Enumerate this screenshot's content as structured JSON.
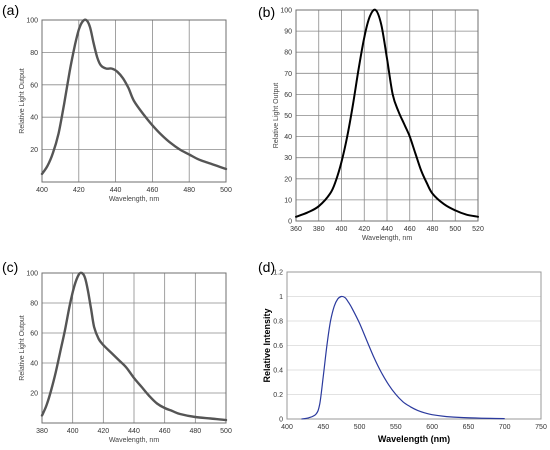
{
  "figure": {
    "panels": [
      "(a)",
      "(b)",
      "(c)",
      "(d)"
    ]
  },
  "colors": {
    "grey_curve": "#555555",
    "black_curve": "#000000",
    "blue_curve": "#2b3a9e",
    "grid": "#8a8a8a"
  },
  "chart_data": [
    {
      "tag": "(a)",
      "type": "line",
      "title": "",
      "xlabel": "Wavelength, nm",
      "ylabel": "Relative Light Output",
      "xlim": [
        400,
        500
      ],
      "ylim": [
        0,
        100
      ],
      "xticks": [
        400,
        420,
        440,
        460,
        480,
        500
      ],
      "yticks": [
        20,
        40,
        60,
        80,
        100
      ],
      "grid": true,
      "x": [
        400,
        403,
        406,
        409,
        412,
        415,
        418,
        420,
        422,
        424,
        426,
        428,
        430,
        432,
        435,
        438,
        441,
        444,
        447,
        450,
        455,
        460,
        465,
        470,
        475,
        480,
        485,
        490,
        495,
        500
      ],
      "y": [
        5,
        10,
        18,
        30,
        48,
        68,
        85,
        94,
        99,
        100,
        96,
        86,
        77,
        72,
        70,
        70,
        68,
        64,
        58,
        50,
        42,
        35,
        29,
        24,
        20,
        17,
        14,
        12,
        10,
        8
      ]
    },
    {
      "tag": "(b)",
      "type": "line",
      "title": "",
      "xlabel": "Wavelength, nm",
      "ylabel": "Relative Light Output",
      "xlim": [
        360,
        520
      ],
      "ylim": [
        0,
        100
      ],
      "xticks": [
        360,
        380,
        400,
        420,
        440,
        460,
        480,
        500,
        520
      ],
      "yticks": [
        0,
        10,
        20,
        30,
        40,
        50,
        60,
        70,
        80,
        90,
        100
      ],
      "grid": true,
      "x": [
        360,
        370,
        380,
        390,
        395,
        400,
        405,
        410,
        415,
        420,
        425,
        430,
        435,
        440,
        445,
        450,
        455,
        460,
        465,
        470,
        475,
        480,
        490,
        500,
        510,
        520
      ],
      "y": [
        2,
        4,
        7,
        13,
        19,
        28,
        40,
        55,
        72,
        87,
        97,
        100,
        93,
        77,
        60,
        52,
        46,
        40,
        32,
        24,
        18,
        13,
        8,
        5,
        3,
        2
      ]
    },
    {
      "tag": "(c)",
      "type": "line",
      "title": "",
      "xlabel": "Wavelength, nm",
      "ylabel": "Relative Light Output",
      "xlim": [
        380,
        500
      ],
      "ylim": [
        0,
        100
      ],
      "xticks": [
        380,
        400,
        420,
        440,
        460,
        480,
        500
      ],
      "yticks": [
        20,
        40,
        60,
        80,
        100
      ],
      "grid": true,
      "x": [
        380,
        383,
        386,
        389,
        392,
        395,
        398,
        401,
        404,
        406,
        408,
        410,
        412,
        414,
        417,
        420,
        425,
        430,
        435,
        440,
        445,
        450,
        455,
        460,
        465,
        470,
        480,
        490,
        500
      ],
      "y": [
        5,
        12,
        22,
        34,
        48,
        62,
        78,
        91,
        99,
        100,
        97,
        88,
        76,
        64,
        56,
        52,
        47,
        42,
        37,
        30,
        24,
        18,
        13,
        10,
        8,
        6,
        4,
        3,
        2
      ]
    },
    {
      "tag": "(d)",
      "type": "line",
      "title": "",
      "xlabel": "Wavelength (nm)",
      "ylabel": "Relative Intensity",
      "xlim": [
        400,
        750
      ],
      "ylim": [
        0,
        1.2
      ],
      "xticks": [
        400,
        450,
        500,
        550,
        600,
        650,
        700,
        750
      ],
      "yticks": [
        0,
        0.2,
        0.4,
        0.6,
        0.8,
        1,
        1.2
      ],
      "grid": true,
      "x": [
        420,
        430,
        440,
        445,
        450,
        455,
        460,
        465,
        470,
        475,
        480,
        485,
        490,
        500,
        510,
        520,
        530,
        540,
        550,
        560,
        570,
        580,
        590,
        600,
        620,
        640,
        660,
        680,
        700
      ],
      "y": [
        0,
        0.01,
        0.04,
        0.12,
        0.35,
        0.6,
        0.8,
        0.92,
        0.98,
        1.0,
        0.99,
        0.95,
        0.9,
        0.78,
        0.64,
        0.5,
        0.38,
        0.28,
        0.2,
        0.14,
        0.1,
        0.07,
        0.05,
        0.035,
        0.02,
        0.012,
        0.008,
        0.005,
        0.003
      ]
    }
  ]
}
